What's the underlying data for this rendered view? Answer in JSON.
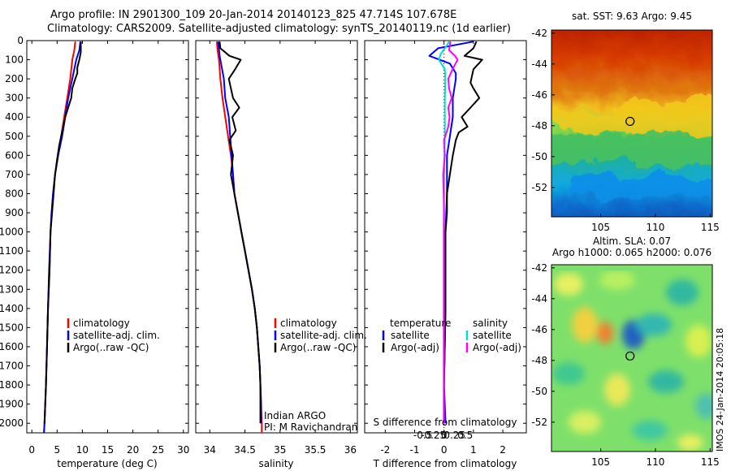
{
  "header": {
    "line1": "Argo profile: IN 2901300_109 20-Jan-2014 20140123_825 47.714S 107.678E",
    "line2": "Climatology: CARS2009. Satellite-adjusted climatology: synTS_20140119.nc (1d earlier)"
  },
  "colors": {
    "climatology": "#ff0000",
    "satellite": "#0000ff",
    "argo": "#000000",
    "s_satellite": "#00dddd",
    "s_argo": "#ff00ff"
  },
  "chart_data": [
    {
      "type": "line",
      "id": "temperature",
      "xlabel": "temperature (deg C)",
      "ylabel": "",
      "xlim": [
        -1,
        31
      ],
      "ylim": [
        2050,
        0
      ],
      "xticks": [
        0,
        5,
        10,
        15,
        20,
        25,
        30
      ],
      "xtick_labels": [
        "0",
        "5",
        "10",
        "15",
        "20",
        "25",
        "30"
      ],
      "yticks": [
        0,
        100,
        200,
        300,
        400,
        500,
        600,
        700,
        800,
        900,
        1000,
        1100,
        1200,
        1300,
        1400,
        1500,
        1600,
        1700,
        1800,
        1900,
        2000
      ],
      "ytick_labels": [
        "0",
        "100",
        "200",
        "300",
        "400",
        "500",
        "600",
        "700",
        "800",
        "900",
        "1000",
        "1100",
        "1200",
        "1300",
        "1400",
        "1500",
        "1600",
        "1700",
        "1800",
        "1900",
        "2000"
      ],
      "legend": [
        "climatology",
        "satellite-adj. clim.",
        "Argo(..raw -QC)"
      ],
      "legend_position": "bottom-center",
      "series": [
        {
          "name": "climatology",
          "color": "#ff0000",
          "points": [
            [
              8.6,
              5
            ],
            [
              8.4,
              50
            ],
            [
              8.0,
              100
            ],
            [
              7.6,
              200
            ],
            [
              7.0,
              300
            ],
            [
              6.4,
              400
            ],
            [
              5.8,
              500
            ],
            [
              5.2,
              600
            ],
            [
              4.6,
              700
            ],
            [
              4.2,
              800
            ],
            [
              3.9,
              900
            ],
            [
              3.7,
              1000
            ],
            [
              3.5,
              1200
            ],
            [
              3.2,
              1400
            ],
            [
              3.0,
              1600
            ],
            [
              2.8,
              1800
            ],
            [
              2.5,
              2000
            ],
            [
              2.4,
              2050
            ]
          ]
        },
        {
          "name": "satellite-adj. clim.",
          "color": "#0000ff",
          "points": [
            [
              9.6,
              5
            ],
            [
              9.4,
              50
            ],
            [
              8.8,
              100
            ],
            [
              8.0,
              200
            ],
            [
              7.2,
              300
            ],
            [
              6.6,
              400
            ],
            [
              6.0,
              500
            ],
            [
              5.2,
              600
            ],
            [
              4.6,
              700
            ],
            [
              4.2,
              800
            ],
            [
              3.9,
              900
            ],
            [
              3.7,
              1000
            ],
            [
              3.4,
              1200
            ],
            [
              3.2,
              1400
            ],
            [
              3.0,
              1600
            ],
            [
              2.8,
              1800
            ],
            [
              2.5,
              2000
            ],
            [
              2.4,
              2050
            ]
          ]
        },
        {
          "name": "Argo(..raw -QC)",
          "color": "#000000",
          "points": [
            [
              9.7,
              5
            ],
            [
              9.7,
              60
            ],
            [
              9.4,
              100
            ],
            [
              9.0,
              140
            ],
            [
              9.0,
              170
            ],
            [
              8.6,
              200
            ],
            [
              8.0,
              250
            ],
            [
              7.8,
              300
            ],
            [
              7.2,
              350
            ],
            [
              6.6,
              400
            ],
            [
              6.2,
              450
            ],
            [
              5.8,
              500
            ],
            [
              5.4,
              550
            ],
            [
              5.0,
              620
            ],
            [
              4.6,
              700
            ],
            [
              4.3,
              800
            ],
            [
              4.0,
              900
            ],
            [
              3.7,
              1000
            ],
            [
              3.5,
              1200
            ],
            [
              3.2,
              1400
            ],
            [
              3.0,
              1600
            ],
            [
              2.8,
              1800
            ],
            [
              2.5,
              2000
            ]
          ]
        }
      ]
    },
    {
      "type": "line",
      "id": "salinity",
      "xlabel": "salinity",
      "ylabel": "",
      "xlim": [
        33.8,
        36.1
      ],
      "ylim": [
        2050,
        0
      ],
      "xticks": [
        34,
        34.5,
        35,
        35.5,
        36
      ],
      "xtick_labels": [
        "34",
        "34.5",
        "35",
        "35.5",
        "36"
      ],
      "legend": [
        "climatology",
        "satellite-adj. clim.",
        "Argo(..raw -QC)"
      ],
      "legend_position": "bottom-right",
      "annotations": [
        "Indian ARGO",
        "PI: M Ravichandran"
      ],
      "series": [
        {
          "name": "climatology",
          "color": "#ff0000",
          "points": [
            [
              34.1,
              5
            ],
            [
              34.11,
              50
            ],
            [
              34.13,
              100
            ],
            [
              34.15,
              200
            ],
            [
              34.18,
              300
            ],
            [
              34.22,
              400
            ],
            [
              34.26,
              500
            ],
            [
              34.3,
              600
            ],
            [
              34.33,
              700
            ],
            [
              34.35,
              800
            ],
            [
              34.4,
              900
            ],
            [
              34.45,
              1000
            ],
            [
              34.5,
              1100
            ],
            [
              34.55,
              1200
            ],
            [
              34.6,
              1300
            ],
            [
              34.64,
              1400
            ],
            [
              34.67,
              1500
            ],
            [
              34.69,
              1600
            ],
            [
              34.71,
              1700
            ],
            [
              34.72,
              1800
            ],
            [
              34.73,
              1900
            ],
            [
              34.74,
              2000
            ],
            [
              34.74,
              2050
            ]
          ]
        },
        {
          "name": "satellite-adj. clim.",
          "color": "#0000ff",
          "points": [
            [
              34.12,
              5
            ],
            [
              34.14,
              80
            ],
            [
              34.2,
              200
            ],
            [
              34.22,
              300
            ],
            [
              34.27,
              400
            ],
            [
              34.29,
              500
            ],
            [
              34.31,
              600
            ],
            [
              34.33,
              700
            ],
            [
              34.35,
              800
            ],
            [
              34.4,
              900
            ],
            [
              34.45,
              1000
            ],
            [
              34.5,
              1100
            ],
            [
              34.55,
              1200
            ],
            [
              34.6,
              1300
            ],
            [
              34.64,
              1400
            ],
            [
              34.67,
              1500
            ],
            [
              34.69,
              1600
            ],
            [
              34.71,
              1700
            ],
            [
              34.72,
              1800
            ],
            [
              34.73,
              1900
            ],
            [
              34.73,
              2000
            ]
          ]
        },
        {
          "name": "Argo(..raw -QC)",
          "color": "#000000",
          "points": [
            [
              34.14,
              5
            ],
            [
              34.15,
              40
            ],
            [
              34.28,
              80
            ],
            [
              34.44,
              100
            ],
            [
              34.36,
              150
            ],
            [
              34.27,
              200
            ],
            [
              34.33,
              300
            ],
            [
              34.42,
              350
            ],
            [
              34.32,
              400
            ],
            [
              34.37,
              470
            ],
            [
              34.28,
              520
            ],
            [
              34.33,
              600
            ],
            [
              34.3,
              700
            ],
            [
              34.35,
              800
            ],
            [
              34.4,
              900
            ],
            [
              34.45,
              1000
            ],
            [
              34.5,
              1100
            ],
            [
              34.55,
              1200
            ],
            [
              34.6,
              1300
            ],
            [
              34.64,
              1400
            ],
            [
              34.67,
              1500
            ],
            [
              34.69,
              1600
            ],
            [
              34.71,
              1700
            ],
            [
              34.72,
              1800
            ],
            [
              34.72,
              1900
            ],
            [
              34.72,
              2000
            ]
          ]
        }
      ]
    },
    {
      "type": "line",
      "id": "difference",
      "xlabel": "T difference from climatology",
      "xlabel_top": "S difference from climatology",
      "xlim": [
        -2.7,
        2.8
      ],
      "ylim": [
        2050,
        0
      ],
      "xticks": [
        -2,
        -1,
        0,
        1,
        2
      ],
      "xtick_labels": [
        "-2",
        "-1",
        "0",
        "1",
        "2"
      ],
      "sticks": [
        -0.5,
        -0.25,
        0,
        0.25,
        0.5
      ],
      "stick_labels": [
        "-0.5",
        "-0.25",
        "0",
        "0.25",
        "0.5"
      ],
      "legend_headers": [
        "temperature",
        "salinity"
      ],
      "legend": [
        "satellite",
        "Argo(-adj)",
        "satellite",
        "Argo(-adj)"
      ],
      "legend_position": "bottom",
      "series": [
        {
          "name": "satellite",
          "quantity": "temperature",
          "color": "#0000ff",
          "points": [
            [
              1.0,
              5
            ],
            [
              -0.2,
              40
            ],
            [
              -0.5,
              80
            ],
            [
              0.2,
              120
            ],
            [
              0.4,
              170
            ],
            [
              0.4,
              200
            ],
            [
              0.3,
              300
            ],
            [
              0.3,
              400
            ],
            [
              0.2,
              500
            ],
            [
              0.1,
              600
            ],
            [
              0.1,
              800
            ],
            [
              0.05,
              1000
            ],
            [
              0.05,
              1400
            ],
            [
              0.0,
              1800
            ],
            [
              0.05,
              2000
            ]
          ]
        },
        {
          "name": "Argo(-adj)",
          "quantity": "temperature",
          "color": "#000000",
          "points": [
            [
              1.1,
              5
            ],
            [
              1.0,
              40
            ],
            [
              0.7,
              80
            ],
            [
              1.3,
              100
            ],
            [
              1.0,
              150
            ],
            [
              0.9,
              220
            ],
            [
              1.0,
              250
            ],
            [
              1.2,
              300
            ],
            [
              0.9,
              350
            ],
            [
              0.6,
              400
            ],
            [
              0.8,
              450
            ],
            [
              0.5,
              480
            ],
            [
              0.4,
              520
            ],
            [
              0.3,
              600
            ],
            [
              0.2,
              700
            ],
            [
              0.1,
              800
            ],
            [
              0.1,
              900
            ],
            [
              0.05,
              1000
            ],
            [
              0.05,
              1400
            ],
            [
              0.0,
              1800
            ],
            [
              0.0,
              2000
            ]
          ]
        },
        {
          "name": "satellite",
          "quantity": "salinity",
          "color": "#00dddd",
          "points": [
            [
              0.12,
              5
            ],
            [
              0.05,
              30
            ],
            [
              -0.08,
              70
            ],
            [
              -0.12,
              100
            ],
            [
              0.02,
              150
            ],
            [
              0.03,
              200
            ],
            [
              0.02,
              300
            ],
            [
              0.02,
              400
            ],
            [
              0.02,
              500
            ],
            [
              0.01,
              600
            ],
            [
              0.0,
              800
            ],
            [
              -0.01,
              1000
            ],
            [
              -0.01,
              1400
            ],
            [
              -0.01,
              1800
            ],
            [
              -0.01,
              2000
            ]
          ]
        },
        {
          "name": "Argo(-adj)",
          "quantity": "salinity",
          "color": "#ff00ff",
          "points": [
            [
              0.15,
              5
            ],
            [
              0.12,
              50
            ],
            [
              0.26,
              80
            ],
            [
              0.32,
              100
            ],
            [
              0.2,
              150
            ],
            [
              0.1,
              200
            ],
            [
              0.12,
              250
            ],
            [
              0.18,
              300
            ],
            [
              0.1,
              350
            ],
            [
              0.13,
              400
            ],
            [
              0.1,
              450
            ],
            [
              0.0,
              520
            ],
            [
              0.02,
              600
            ],
            [
              -0.02,
              700
            ],
            [
              -0.01,
              800
            ],
            [
              0.0,
              900
            ],
            [
              0.0,
              1000
            ],
            [
              0.0,
              1400
            ],
            [
              0.0,
              1800
            ],
            [
              0.0,
              2000
            ]
          ]
        }
      ]
    },
    {
      "type": "heatmap",
      "id": "sst-map",
      "title": "sat. SST: 9.63 Argo: 9.45",
      "xlim": [
        100.5,
        115.2
      ],
      "ylim": [
        -53.9,
        -41.8
      ],
      "xticks": [
        105,
        110,
        115
      ],
      "xtick_labels": [
        "105",
        "110",
        "115"
      ],
      "yticks": [
        -42,
        -44,
        -46,
        -48,
        -50,
        -52
      ],
      "ytick_labels": [
        "-42",
        "-44",
        "-46",
        "-48",
        "-50",
        "-52"
      ],
      "marker": {
        "lon": 107.678,
        "lat": -47.714
      }
    },
    {
      "type": "heatmap",
      "id": "sla-map",
      "title": "Altim. SLA: 0.07",
      "subtitle": "Argo h1000: 0.065 h2000: 0.076",
      "xlim": [
        100.5,
        115.2
      ],
      "ylim": [
        -53.9,
        -41.8
      ],
      "xticks": [
        105,
        110,
        115
      ],
      "xtick_labels": [
        "105",
        "110",
        "115"
      ],
      "yticks": [
        -42,
        -44,
        -46,
        -48,
        -50,
        -52
      ],
      "ytick_labels": [
        "-42",
        "-44",
        "-46",
        "-48",
        "-50",
        "-52"
      ],
      "marker": {
        "lon": 107.678,
        "lat": -47.714
      },
      "side_label": "IMOS 24-Jan-2014 20:05:18"
    }
  ]
}
